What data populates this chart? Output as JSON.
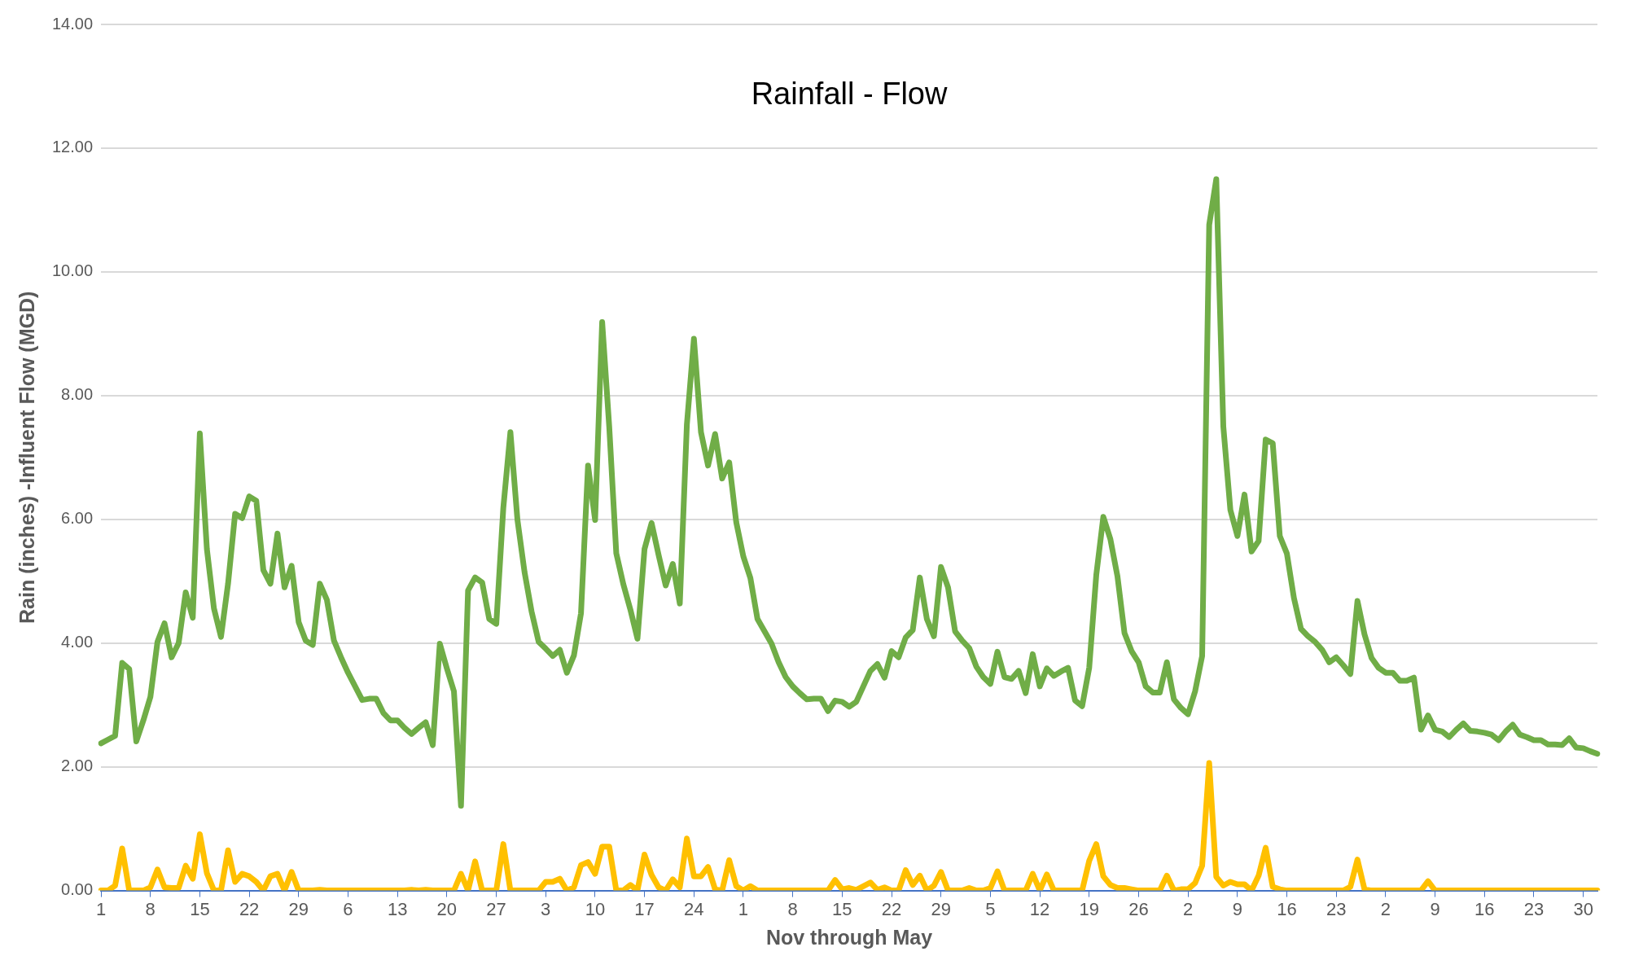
{
  "chart_data": {
    "type": "line",
    "title": "Rainfall - Flow",
    "xlabel": "Nov through May",
    "ylabel": "Rain (inches) -Influent Flow (MGD)",
    "categories": [
      "1",
      null,
      null,
      null,
      null,
      null,
      null,
      "8",
      null,
      null,
      null,
      null,
      null,
      null,
      "15",
      null,
      null,
      null,
      null,
      null,
      null,
      "22",
      null,
      null,
      null,
      null,
      null,
      null,
      "29",
      null,
      null,
      null,
      null,
      null,
      null,
      "6",
      null,
      null,
      null,
      null,
      null,
      null,
      "13",
      null,
      null,
      null,
      null,
      null,
      null,
      "20",
      null,
      null,
      null,
      null,
      null,
      null,
      "27",
      null,
      null,
      null,
      null,
      null,
      null,
      "3",
      null,
      null,
      null,
      null,
      null,
      null,
      "10",
      null,
      null,
      null,
      null,
      null,
      null,
      "17",
      null,
      null,
      null,
      null,
      null,
      null,
      "24",
      null,
      null,
      null,
      null,
      null,
      null,
      "1",
      null,
      null,
      null,
      null,
      null,
      null,
      "8",
      null,
      null,
      null,
      null,
      null,
      null,
      "15",
      null,
      null,
      null,
      null,
      null,
      null,
      "22",
      null,
      null,
      null,
      null,
      null,
      null,
      "29",
      null,
      null,
      null,
      null,
      null,
      null,
      "5",
      null,
      null,
      null,
      null,
      null,
      null,
      "12",
      null,
      null,
      null,
      null,
      null,
      null,
      "19",
      null,
      null,
      null,
      null,
      null,
      null,
      "26",
      null,
      null,
      null,
      null,
      null,
      null,
      "2",
      null,
      null,
      null,
      null,
      null,
      null,
      "9",
      null,
      null,
      null,
      null,
      null,
      null,
      "16",
      null,
      null,
      null,
      null,
      null,
      null,
      "23",
      null,
      null,
      null,
      null,
      null,
      null,
      "2",
      null,
      null,
      null,
      null,
      null,
      null,
      "9",
      null,
      null,
      null,
      null,
      null,
      null,
      "16",
      null,
      null,
      null,
      null,
      null,
      null,
      "23",
      null,
      null,
      null,
      null,
      null,
      null,
      "30",
      null,
      null
    ],
    "series": [
      {
        "color": "#70ad47",
        "values": [
          2.38,
          2.44,
          2.5,
          3.68,
          3.58,
          2.41,
          2.75,
          3.13,
          4.02,
          4.32,
          3.77,
          4.0,
          4.82,
          4.41,
          7.39,
          5.52,
          4.56,
          4.1,
          4.96,
          6.09,
          6.02,
          6.37,
          6.3,
          5.18,
          4.96,
          5.77,
          4.9,
          5.25,
          4.34,
          4.04,
          3.97,
          4.96,
          4.7,
          4.04,
          3.77,
          3.52,
          3.3,
          3.08,
          3.1,
          3.1,
          2.87,
          2.75,
          2.75,
          2.63,
          2.53,
          2.63,
          2.72,
          2.35,
          3.99,
          3.59,
          3.22,
          1.37,
          4.85,
          5.06,
          4.98,
          4.39,
          4.31,
          6.19,
          7.41,
          5.99,
          5.15,
          4.51,
          4.02,
          3.91,
          3.79,
          3.89,
          3.52,
          3.8,
          4.48,
          6.87,
          5.99,
          9.19,
          7.5,
          5.45,
          4.95,
          4.54,
          4.07,
          5.52,
          5.94,
          5.42,
          4.93,
          5.28,
          4.64,
          7.53,
          8.92,
          7.41,
          6.87,
          7.38,
          6.66,
          6.92,
          5.95,
          5.4,
          5.05,
          4.39,
          4.19,
          3.99,
          3.69,
          3.45,
          3.3,
          3.19,
          3.09,
          3.1,
          3.1,
          2.9,
          3.07,
          3.05,
          2.97,
          3.05,
          3.3,
          3.55,
          3.66,
          3.44,
          3.87,
          3.77,
          4.09,
          4.21,
          5.06,
          4.39,
          4.11,
          5.23,
          4.9,
          4.19,
          4.04,
          3.92,
          3.62,
          3.45,
          3.34,
          3.86,
          3.45,
          3.42,
          3.55,
          3.19,
          3.82,
          3.3,
          3.59,
          3.47,
          3.54,
          3.6,
          3.07,
          2.98,
          3.6,
          5.1,
          6.04,
          5.68,
          5.08,
          4.16,
          3.87,
          3.69,
          3.3,
          3.2,
          3.2,
          3.69,
          3.09,
          2.95,
          2.85,
          3.22,
          3.79,
          10.76,
          11.5,
          7.5,
          6.15,
          5.73,
          6.4,
          5.48,
          5.65,
          7.29,
          7.23,
          5.73,
          5.45,
          4.73,
          4.23,
          4.11,
          4.02,
          3.89,
          3.69,
          3.77,
          3.64,
          3.5,
          4.68,
          4.14,
          3.76,
          3.6,
          3.52,
          3.52,
          3.39,
          3.39,
          3.44,
          2.6,
          2.83,
          2.6,
          2.57,
          2.48,
          2.6,
          2.7,
          2.58,
          2.57,
          2.55,
          2.52,
          2.43,
          2.57,
          2.68,
          2.52,
          2.48,
          2.43,
          2.43,
          2.36,
          2.36,
          2.35,
          2.46,
          2.31,
          2.3,
          2.25,
          2.21
        ]
      },
      {
        "color": "#ffc000",
        "values": [
          0,
          0,
          0.08,
          0.68,
          0,
          0,
          0,
          0.05,
          0.34,
          0.05,
          0.04,
          0.04,
          0.4,
          0.19,
          0.91,
          0.28,
          0,
          0,
          0.65,
          0.14,
          0.27,
          0.23,
          0.14,
          0,
          0.23,
          0.27,
          0,
          0.3,
          0,
          0,
          0,
          0.01,
          0,
          0,
          0,
          0,
          0,
          0,
          0,
          0,
          0,
          0,
          0,
          0,
          0.01,
          0,
          0.01,
          0,
          0,
          0,
          0,
          0.27,
          0,
          0.47,
          0,
          0,
          0,
          0.75,
          0,
          0,
          0,
          0,
          0,
          0.14,
          0.14,
          0.19,
          0,
          0.05,
          0.41,
          0.46,
          0.27,
          0.71,
          0.71,
          0,
          0,
          0.09,
          0,
          0.58,
          0.25,
          0.05,
          0,
          0.18,
          0.05,
          0.84,
          0.23,
          0.23,
          0.38,
          0.02,
          0,
          0.49,
          0.07,
          0,
          0.07,
          0,
          0,
          0,
          0,
          0,
          0,
          0,
          0,
          0,
          0,
          0,
          0.17,
          0.02,
          0.04,
          0.01,
          0.07,
          0.13,
          0.01,
          0.05,
          0,
          0,
          0.33,
          0.09,
          0.24,
          0,
          0.08,
          0.3,
          0,
          0,
          0,
          0.04,
          0,
          0,
          0.04,
          0.31,
          0,
          0,
          0,
          0,
          0.27,
          0,
          0.26,
          0,
          0,
          0,
          0,
          0,
          0.48,
          0.75,
          0.23,
          0.09,
          0.04,
          0.04,
          0.02,
          0,
          0,
          0,
          0,
          0.24,
          0,
          0.02,
          0.02,
          0.12,
          0.4,
          2.06,
          0.22,
          0.08,
          0.14,
          0.1,
          0.1,
          0,
          0.24,
          0.69,
          0.06,
          0.02,
          0,
          0,
          0,
          0,
          0,
          0,
          0,
          0,
          0,
          0.06,
          0.5,
          0.02,
          0,
          0,
          0,
          0,
          0,
          0,
          0,
          0,
          0.15,
          0,
          0,
          0,
          0,
          0,
          0,
          0,
          0,
          0,
          0,
          0,
          0,
          0,
          0,
          0,
          0,
          0,
          0,
          0,
          0,
          0,
          0,
          0,
          0
        ]
      }
    ],
    "ylim": [
      0,
      14
    ],
    "yticks": [
      {
        "value": 0,
        "label": "0.00"
      },
      {
        "value": 2,
        "label": "2.00"
      },
      {
        "value": 4,
        "label": "4.00"
      },
      {
        "value": 6,
        "label": "6.00"
      },
      {
        "value": 8,
        "label": "8.00"
      },
      {
        "value": 10,
        "label": "10.00"
      },
      {
        "value": 12,
        "label": "12.00"
      },
      {
        "value": 14,
        "label": "14.00"
      }
    ],
    "grid": "y",
    "legend": false,
    "marker": "none",
    "line_style": "solid"
  }
}
